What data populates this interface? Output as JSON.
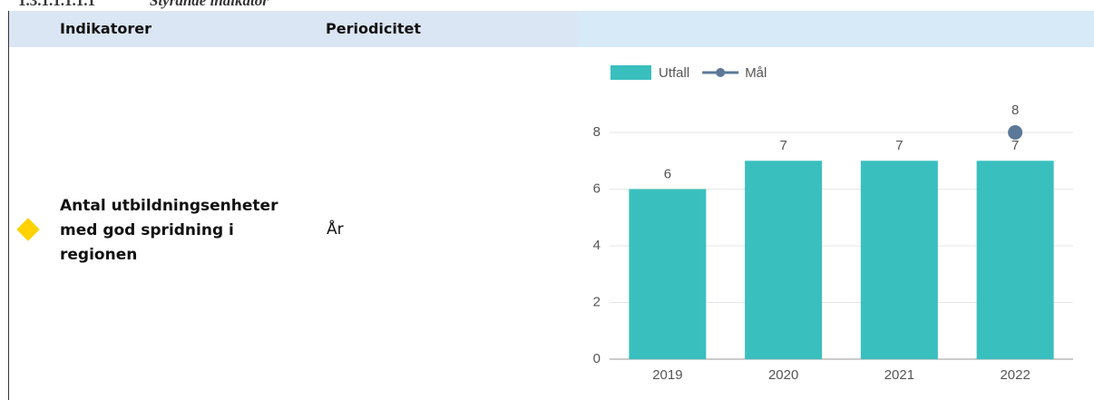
{
  "heading": {
    "number": "1.3.1.1.1.1.1",
    "title": "Styrande indikator"
  },
  "table": {
    "headers": [
      "Indikatorer",
      "Periodicitet"
    ],
    "rows": [
      {
        "indicator": "Antal utbildningsenheter med god spridning i regionen",
        "periodicity": "År"
      }
    ]
  },
  "chart_data": {
    "type": "bar",
    "categories": [
      "2019",
      "2020",
      "2021",
      "2022"
    ],
    "series": [
      {
        "name": "Utfall",
        "color": "#3abfbf",
        "type": "bar",
        "values": [
          6,
          7,
          7,
          7
        ]
      },
      {
        "name": "Mål",
        "color": "#5b7897",
        "type": "line",
        "values": [
          null,
          null,
          null,
          8
        ]
      }
    ],
    "ylim": [
      0,
      8
    ],
    "yticks": [
      0,
      2,
      4,
      6,
      8
    ],
    "grid": true,
    "legend": "top"
  }
}
